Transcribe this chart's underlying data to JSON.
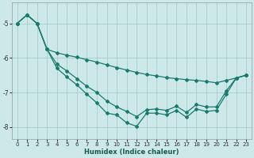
{
  "xlabel": "Humidex (Indice chaleur)",
  "background_color": "#cce8e8",
  "grid_color": "#aacccc",
  "line_color": "#1a7a6e",
  "x": [
    0,
    1,
    2,
    3,
    4,
    5,
    6,
    7,
    8,
    9,
    10,
    11,
    12,
    13,
    14,
    15,
    16,
    17,
    18,
    19,
    20,
    21,
    22,
    23
  ],
  "y_top": [
    -5.0,
    -4.75,
    -5.0,
    -5.75,
    -5.85,
    -5.92,
    -5.98,
    -6.05,
    -6.12,
    -6.2,
    -6.28,
    -6.35,
    -6.42,
    -6.48,
    -6.52,
    -6.57,
    -6.6,
    -6.63,
    -6.65,
    -6.68,
    -6.72,
    -6.65,
    -6.58,
    -6.5
  ],
  "y_mid": [
    -5.0,
    -4.75,
    -5.0,
    -5.75,
    -6.18,
    -6.38,
    -6.6,
    -6.82,
    -7.0,
    -7.25,
    -7.42,
    -7.55,
    -7.7,
    -7.5,
    -7.48,
    -7.52,
    -7.4,
    -7.58,
    -7.35,
    -7.42,
    -7.42,
    -6.95,
    -6.58,
    -6.5
  ],
  "y_bot": [
    -5.0,
    -4.75,
    -5.0,
    -5.75,
    -6.3,
    -6.55,
    -6.78,
    -7.05,
    -7.3,
    -7.6,
    -7.65,
    -7.88,
    -7.98,
    -7.6,
    -7.6,
    -7.65,
    -7.52,
    -7.72,
    -7.48,
    -7.55,
    -7.52,
    -7.05,
    -6.58,
    -6.5
  ],
  "ylim": [
    -8.35,
    -4.4
  ],
  "xlim": [
    -0.5,
    23.5
  ],
  "yticks": [
    -8,
    -7,
    -6,
    -5
  ],
  "xticks": [
    0,
    1,
    2,
    3,
    4,
    5,
    6,
    7,
    8,
    9,
    10,
    11,
    12,
    13,
    14,
    15,
    16,
    17,
    18,
    19,
    20,
    21,
    22,
    23
  ]
}
